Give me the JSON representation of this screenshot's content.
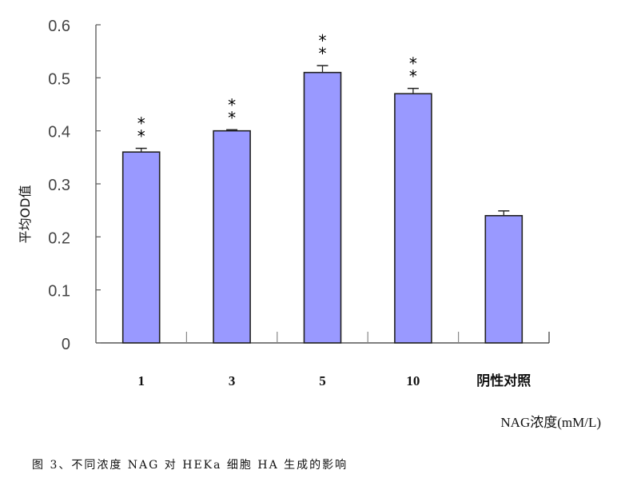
{
  "chart_data": {
    "type": "bar",
    "title": "",
    "caption": "图 3、不同浓度 NAG 对 HEKa 细胞 HA 生成的影响",
    "xlabel": "NAG浓度(mM/L)",
    "ylabel": "平均OD值",
    "categories": [
      "1",
      "3",
      "5",
      "10",
      "阴性对照"
    ],
    "values": [
      0.36,
      0.4,
      0.51,
      0.47,
      0.24
    ],
    "error_upper": [
      0.367,
      0.402,
      0.523,
      0.48,
      0.249
    ],
    "significance": [
      "**",
      "**",
      "**",
      "**",
      ""
    ],
    "ylim": [
      0,
      0.6
    ],
    "yticks": [
      "0",
      "0.1",
      "0.2",
      "0.3",
      "0.4",
      "0.5",
      "0.6"
    ],
    "grid": false,
    "bar_color": "#9999ff"
  }
}
